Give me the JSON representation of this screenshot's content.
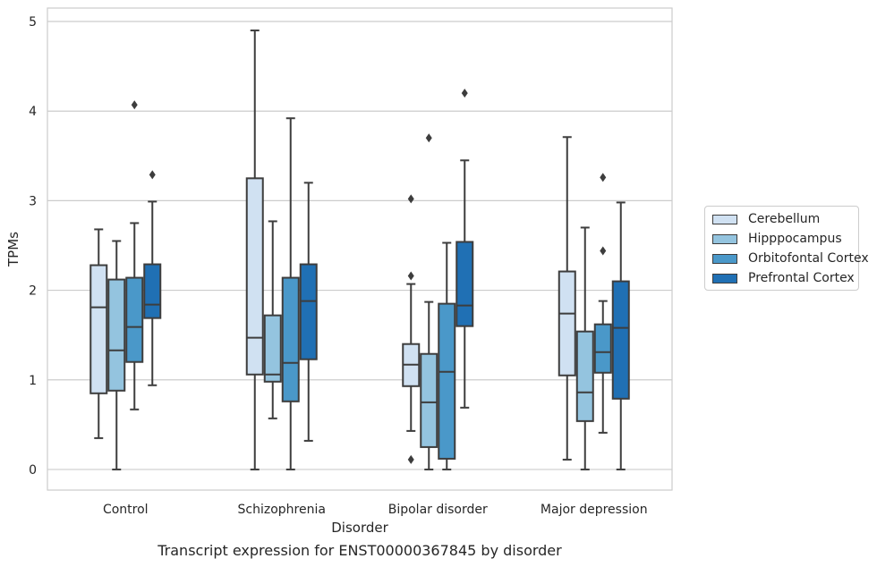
{
  "chart_data": {
    "type": "box",
    "title": "",
    "caption": "Transcript expression for ENST00000367845 by disorder",
    "xlabel": "Disorder",
    "ylabel": "TPMs",
    "ylim": [
      -0.23,
      5.15
    ],
    "yticks": [
      0,
      1,
      2,
      3,
      4,
      5
    ],
    "grid": "horizontal",
    "legend_position": "right",
    "categories": [
      "Control",
      "Schizophrenia",
      "Bipolar disorder",
      "Major depression"
    ],
    "series": [
      {
        "name": "Cerebellum",
        "color": "#d0e1f2",
        "boxes": [
          {
            "whisker_low": 0.35,
            "q1": 0.85,
            "median": 1.81,
            "q3": 2.28,
            "whisker_high": 2.68,
            "outliers": []
          },
          {
            "whisker_low": 0.0,
            "q1": 1.06,
            "median": 1.47,
            "q3": 3.25,
            "whisker_high": 4.9,
            "outliers": []
          },
          {
            "whisker_low": 0.43,
            "q1": 0.93,
            "median": 1.17,
            "q3": 1.4,
            "whisker_high": 2.07,
            "outliers": [
              3.02,
              2.16,
              0.11
            ]
          },
          {
            "whisker_low": 0.11,
            "q1": 1.05,
            "median": 1.74,
            "q3": 2.21,
            "whisker_high": 3.71,
            "outliers": []
          }
        ]
      },
      {
        "name": "Hipppocampus",
        "color": "#94c4df",
        "boxes": [
          {
            "whisker_low": 0.0,
            "q1": 0.88,
            "median": 1.33,
            "q3": 2.12,
            "whisker_high": 2.55,
            "outliers": []
          },
          {
            "whisker_low": 0.57,
            "q1": 0.98,
            "median": 1.06,
            "q3": 1.72,
            "whisker_high": 2.77,
            "outliers": []
          },
          {
            "whisker_low": 0.0,
            "q1": 0.25,
            "median": 0.75,
            "q3": 1.29,
            "whisker_high": 1.87,
            "outliers": [
              3.7
            ]
          },
          {
            "whisker_low": 0.0,
            "q1": 0.54,
            "median": 0.86,
            "q3": 1.54,
            "whisker_high": 2.7,
            "outliers": []
          }
        ]
      },
      {
        "name": "Orbitofontal Cortex",
        "color": "#4a98c9",
        "boxes": [
          {
            "whisker_low": 0.67,
            "q1": 1.2,
            "median": 1.59,
            "q3": 2.14,
            "whisker_high": 2.75,
            "outliers": [
              4.07
            ]
          },
          {
            "whisker_low": 0.0,
            "q1": 0.76,
            "median": 1.19,
            "q3": 2.14,
            "whisker_high": 3.92,
            "outliers": []
          },
          {
            "whisker_low": 0.0,
            "q1": 0.12,
            "median": 1.09,
            "q3": 1.85,
            "whisker_high": 2.53,
            "outliers": []
          },
          {
            "whisker_low": 0.41,
            "q1": 1.08,
            "median": 1.31,
            "q3": 1.62,
            "whisker_high": 1.88,
            "outliers": [
              3.26,
              2.44
            ]
          }
        ]
      },
      {
        "name": "Prefrontal Cortex",
        "color": "#2070b4",
        "boxes": [
          {
            "whisker_low": 0.94,
            "q1": 1.69,
            "median": 1.84,
            "q3": 2.29,
            "whisker_high": 2.99,
            "outliers": [
              3.29
            ]
          },
          {
            "whisker_low": 0.32,
            "q1": 1.23,
            "median": 1.88,
            "q3": 2.29,
            "whisker_high": 3.2,
            "outliers": []
          },
          {
            "whisker_low": 0.69,
            "q1": 1.6,
            "median": 1.83,
            "q3": 2.54,
            "whisker_high": 3.45,
            "outliers": [
              4.2
            ]
          },
          {
            "whisker_low": 0.0,
            "q1": 0.79,
            "median": 1.58,
            "q3": 2.1,
            "whisker_high": 2.98,
            "outliers": []
          }
        ]
      }
    ]
  }
}
